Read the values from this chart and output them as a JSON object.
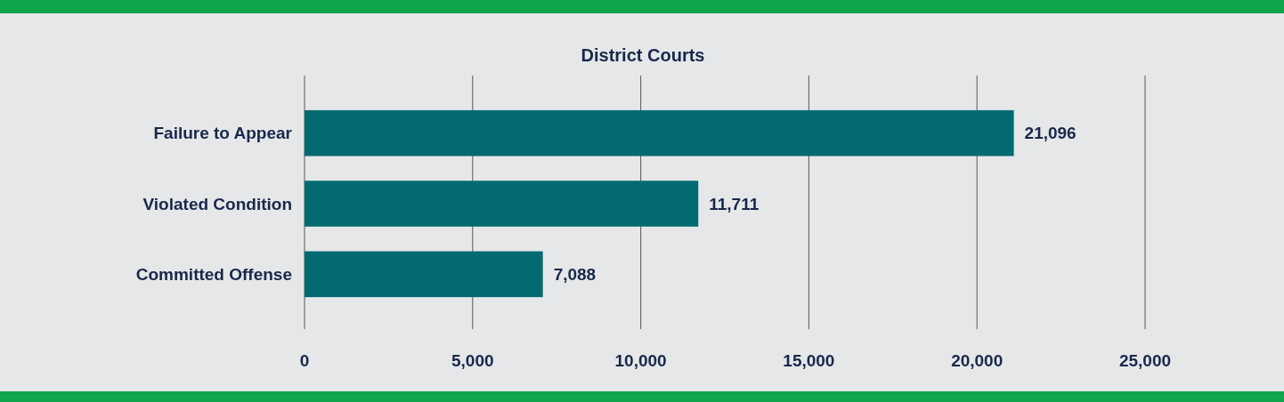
{
  "chart_data": {
    "type": "bar",
    "orientation": "horizontal",
    "title": "District Courts",
    "categories": [
      "Failure to Appear",
      "Violated Condition",
      "Committed Offense"
    ],
    "values": [
      21096,
      11711,
      7088
    ],
    "value_labels": [
      "21,096",
      "11,711",
      "7,088"
    ],
    "color": "#046a72",
    "xlim": [
      0,
      25000
    ],
    "xticks": [
      {
        "value": 0,
        "label": "0"
      },
      {
        "value": 5000,
        "label": "5,000"
      },
      {
        "value": 10000,
        "label": "10,000"
      },
      {
        "value": 15000,
        "label": "15,000"
      },
      {
        "value": 20000,
        "label": "20,000"
      },
      {
        "value": 25000,
        "label": "25,000"
      }
    ],
    "grid": "x"
  }
}
